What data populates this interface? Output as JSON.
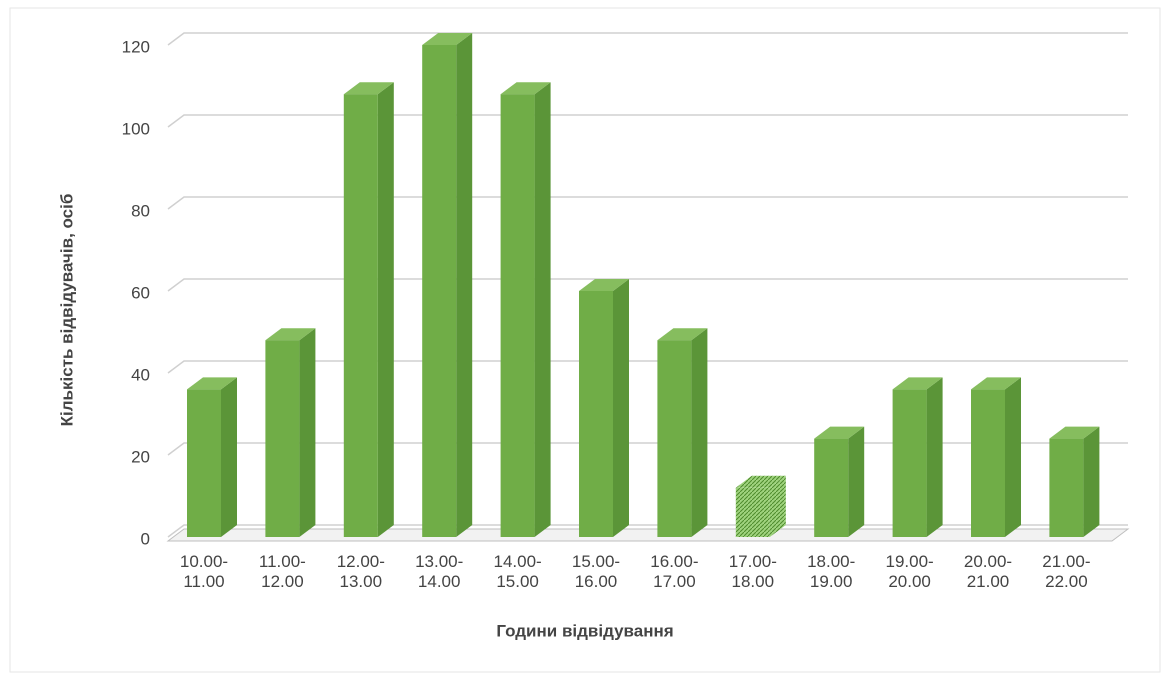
{
  "chart_data": {
    "type": "bar3d",
    "y_axis_label": "Кількість відвідувачів, осіб",
    "x_axis_label": "Години відвідування",
    "categories": [
      "10.00- 11.00",
      "11.00- 12.00",
      "12.00- 13.00",
      "13.00- 14.00",
      "14.00- 15.00",
      "15.00- 16.00",
      "16.00- 17.00",
      "17.00- 18.00",
      "18.00- 19.00",
      "19.00- 20.00",
      "20.00- 21.00",
      "21.00- 22.00"
    ],
    "values": [
      36,
      48,
      108,
      120,
      108,
      60,
      48,
      12,
      24,
      36,
      36,
      24
    ],
    "color": "#70ad47",
    "hatched": 7,
    "ylim": [
      0,
      120
    ],
    "yticks": [
      0,
      20,
      40,
      60,
      80,
      100,
      120
    ],
    "grid": true
  }
}
